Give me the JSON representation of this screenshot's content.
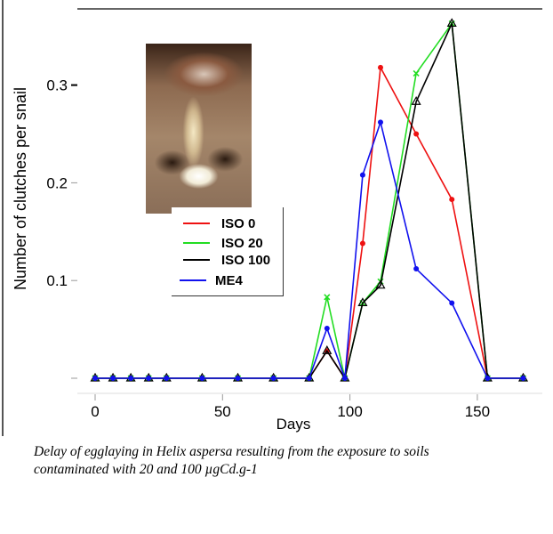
{
  "chart_data": {
    "type": "line",
    "title": "",
    "xlabel": "Days",
    "ylabel": "Number of clutches per snail",
    "xlim": [
      -8,
      176
    ],
    "ylim": [
      -0.0,
      0.37
    ],
    "xticks": [
      0,
      50,
      100,
      150
    ],
    "yticks": [
      0.1,
      0.2,
      0.3
    ],
    "ytick_labels": [
      "0.1",
      "0.2",
      "0.3"
    ],
    "xtick_labels": [
      "0",
      "50",
      "100",
      "150"
    ],
    "x": [
      0,
      7,
      14,
      21,
      28,
      42,
      56,
      70,
      84,
      91,
      98,
      105,
      112,
      126,
      140,
      154,
      168
    ],
    "series": [
      {
        "name": "ISO 0",
        "color": "#ee1111",
        "marker": "circle",
        "values": [
          0,
          0,
          0,
          0,
          0,
          0,
          0,
          0,
          0,
          0.028,
          0,
          0.138,
          0.318,
          0.25,
          0.183,
          0,
          0
        ]
      },
      {
        "name": "ISO 20",
        "color": "#22dd22",
        "marker": "x",
        "values": [
          0,
          0,
          0,
          0,
          0,
          0,
          0,
          0,
          0,
          0.083,
          0,
          0.077,
          0.099,
          0.312,
          0.363,
          0,
          0
        ]
      },
      {
        "name": "ISO 100",
        "color": "#000000",
        "marker": "triangle",
        "values": [
          0,
          0,
          0,
          0,
          0,
          0,
          0,
          0,
          0,
          0.028,
          0,
          0.077,
          0.095,
          0.283,
          0.363,
          0,
          0
        ]
      },
      {
        "name": "ME4",
        "color": "#1111ee",
        "marker": "circle",
        "values": [
          0,
          0,
          0,
          0,
          0,
          0,
          0,
          0,
          0,
          0.051,
          0,
          0.208,
          0.262,
          0.112,
          0.077,
          0,
          0
        ]
      }
    ],
    "legend_position": "center-left",
    "grid": false
  },
  "caption": {
    "line1": "Delay of egglaying in Helix aspersa resulting from the exposure to soils",
    "line2": "contaminated with 20 and 100 µgCd.g-1"
  }
}
